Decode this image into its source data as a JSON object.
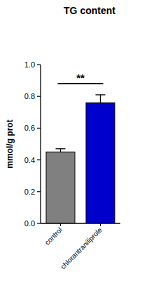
{
  "chart_data": {
    "type": "bar",
    "title": "TG content",
    "y_label": "mmol/g prot",
    "categories": [
      "control",
      "chlorantraniliprole"
    ],
    "values": [
      0.45,
      0.76
    ],
    "errors": [
      0.02,
      0.05
    ],
    "colors": [
      "#808080",
      "#0000cc"
    ],
    "ylim": [
      0,
      1.0
    ],
    "yticks": [
      {
        "value": 0,
        "label": "0.0"
      },
      {
        "value": 0.2,
        "label": "0.2"
      },
      {
        "value": 0.4,
        "label": "0.4"
      },
      {
        "value": 0.6,
        "label": "0.6"
      },
      {
        "value": 0.8,
        "label": "0.8"
      },
      {
        "value": 1.0,
        "label": "1.0"
      }
    ],
    "annotations": [
      "**"
    ],
    "grid": false
  }
}
